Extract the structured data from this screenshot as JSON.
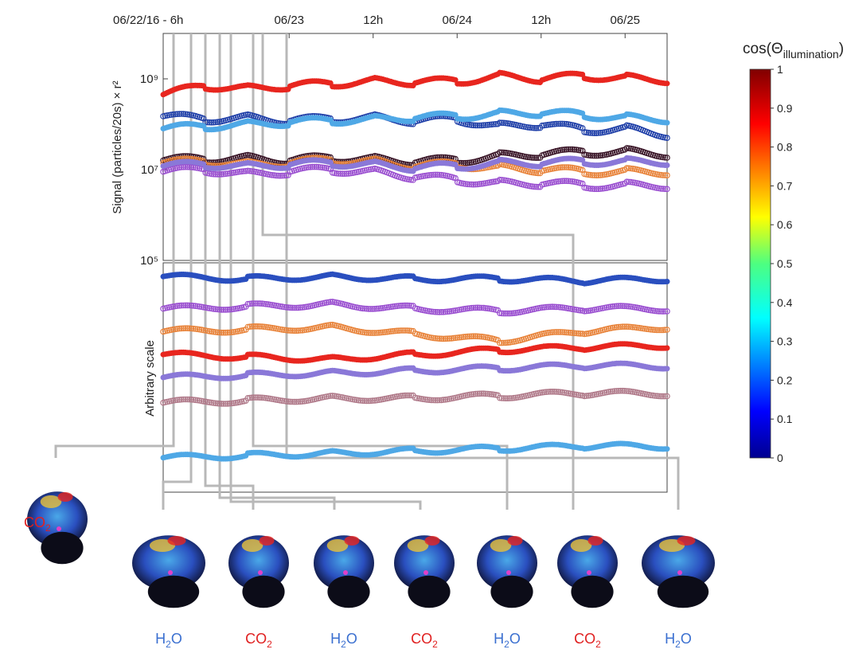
{
  "chart_data": [
    {
      "type": "scatter",
      "panel": "top",
      "ylabel": "Signal (particles/20s) × r²",
      "yscale": "log",
      "ylim": [
        100000,
        10000000000
      ],
      "yticks": [
        {
          "value": 100000,
          "label": "10⁵"
        },
        {
          "value": 10000000,
          "label": "10⁷"
        },
        {
          "value": 1000000000,
          "label": "10⁹"
        }
      ],
      "xlim": [
        0,
        3
      ],
      "xticks": [
        {
          "value": 0,
          "label": "06/22/16 - 6h"
        },
        {
          "value": 0.75,
          "label": "06/23"
        },
        {
          "value": 1.25,
          "label": "12h"
        },
        {
          "value": 1.75,
          "label": "06/24"
        },
        {
          "value": 2.25,
          "label": "12h"
        },
        {
          "value": 2.75,
          "label": "06/25"
        }
      ],
      "series": [
        {
          "color": "#e8261f",
          "marker": "filled",
          "x": [
            0,
            0.25,
            0.5,
            0.75,
            1.0,
            1.25,
            1.5,
            1.75,
            2.0,
            2.25,
            2.5,
            2.75,
            3.0
          ],
          "y": [
            450000000,
            700000000,
            620000000,
            700000000,
            780000000,
            900000000,
            850000000,
            880000000,
            1150000000,
            1000000000,
            1150000000,
            1050000000,
            950000000
          ]
        },
        {
          "color": "#1f3fa8",
          "marker": "open",
          "x": [
            0,
            0.25,
            0.5,
            0.75,
            1.0,
            1.25,
            1.5,
            1.75,
            2.0,
            2.25,
            2.5,
            2.75,
            3.0
          ],
          "y": [
            150000000,
            130000000,
            140000000,
            120000000,
            130000000,
            140000000,
            120000000,
            130000000,
            90000000,
            100000000,
            75000000,
            80000000,
            60000000
          ]
        },
        {
          "color": "#4fa8e6",
          "marker": "filled",
          "x": [
            0,
            0.25,
            0.5,
            0.75,
            1.0,
            1.25,
            1.5,
            1.75,
            2.0,
            2.25,
            2.5,
            2.75,
            3.0
          ],
          "y": [
            80000000,
            90000000,
            100000000,
            110000000,
            120000000,
            130000000,
            140000000,
            150000000,
            170000000,
            180000000,
            160000000,
            140000000,
            130000000
          ]
        },
        {
          "color": "#3a1628",
          "marker": "open",
          "x": [
            0,
            0.25,
            0.5,
            0.75,
            1.0,
            1.25,
            1.5,
            1.75,
            2.0,
            2.25,
            2.5,
            2.75,
            3.0
          ],
          "y": [
            16000000,
            17000000,
            18000000,
            16000000,
            18000000,
            17000000,
            15000000,
            16000000,
            20000000,
            22000000,
            24000000,
            25000000,
            22000000
          ]
        },
        {
          "color": "#e8833a",
          "marker": "open",
          "x": [
            0,
            0.25,
            0.5,
            0.75,
            1.0,
            1.25,
            1.5,
            1.75,
            2.0,
            2.25,
            2.5,
            2.75,
            3.0
          ],
          "y": [
            14000000,
            15000000,
            13000000,
            14000000,
            16000000,
            15000000,
            12000000,
            13000000,
            11000000,
            10000000,
            9000000,
            9000000,
            9000000
          ]
        },
        {
          "color": "#9a4fd0",
          "marker": "open",
          "x": [
            0,
            0.25,
            0.5,
            0.75,
            1.0,
            1.25,
            1.5,
            1.75,
            2.0,
            2.25,
            2.5,
            2.75,
            3.0
          ],
          "y": [
            9000000,
            10000000,
            8000000,
            9000000,
            10000000,
            9000000,
            7000000,
            6000000,
            5000000,
            5000000,
            4500000,
            4500000,
            4500000
          ]
        },
        {
          "color": "#8a78d8",
          "marker": "filled",
          "x": [
            0,
            0.25,
            0.5,
            0.75,
            1.0,
            1.25,
            1.5,
            1.75,
            2.0,
            2.25,
            2.5,
            2.75,
            3.0
          ],
          "y": [
            12000000,
            13000000,
            12000000,
            13000000,
            14000000,
            13000000,
            11000000,
            12000000,
            14000000,
            14000000,
            15000000,
            15000000,
            15000000
          ]
        }
      ]
    },
    {
      "type": "scatter",
      "panel": "bottom",
      "ylabel": "Arbitrary scale",
      "xlim": [
        0,
        3
      ],
      "series": [
        {
          "color": "#2a4fbf",
          "marker": "filled",
          "x": [
            0,
            0.5,
            1.0,
            1.5,
            2.0,
            2.5,
            3.0
          ],
          "y": [
            0.94,
            0.93,
            0.94,
            0.93,
            0.93,
            0.92,
            0.93
          ]
        },
        {
          "color": "#9a4fd0",
          "marker": "open",
          "x": [
            0,
            0.5,
            1.0,
            1.5,
            2.0,
            2.5,
            3.0
          ],
          "y": [
            0.8,
            0.81,
            0.82,
            0.8,
            0.79,
            0.8,
            0.8
          ]
        },
        {
          "color": "#e8833a",
          "marker": "open",
          "x": [
            0,
            0.5,
            1.0,
            1.5,
            2.0,
            2.5,
            3.0
          ],
          "y": [
            0.7,
            0.71,
            0.72,
            0.69,
            0.66,
            0.7,
            0.72
          ]
        },
        {
          "color": "#e8261f",
          "marker": "filled",
          "x": [
            0,
            0.5,
            1.0,
            1.5,
            2.0,
            2.5,
            3.0
          ],
          "y": [
            0.6,
            0.59,
            0.58,
            0.6,
            0.62,
            0.63,
            0.64
          ]
        },
        {
          "color": "#8a78d8",
          "marker": "filled",
          "x": [
            0,
            0.5,
            1.0,
            1.5,
            2.0,
            2.5,
            3.0
          ],
          "y": [
            0.5,
            0.51,
            0.52,
            0.53,
            0.54,
            0.55,
            0.55
          ]
        },
        {
          "color": "#b07a8a",
          "marker": "open",
          "x": [
            0,
            0.5,
            1.0,
            1.5,
            2.0,
            2.5,
            3.0
          ],
          "y": [
            0.39,
            0.4,
            0.41,
            0.41,
            0.42,
            0.43,
            0.43
          ]
        },
        {
          "color": "#4fa8e6",
          "marker": "filled",
          "x": [
            0,
            0.5,
            1.0,
            1.5,
            2.0,
            2.5,
            3.0
          ],
          "y": [
            0.15,
            0.16,
            0.17,
            0.18,
            0.19,
            0.2,
            0.2
          ]
        }
      ]
    }
  ],
  "colorbar": {
    "title": "cos(Θ",
    "title_sub": "illumination",
    "title_close": ")",
    "ticks": [
      {
        "value": 1,
        "label": "1"
      },
      {
        "value": 0.9,
        "label": "0.9"
      },
      {
        "value": 0.8,
        "label": "0.8"
      },
      {
        "value": 0.7,
        "label": "0.7"
      },
      {
        "value": 0.6,
        "label": "0.6"
      },
      {
        "value": 0.5,
        "label": "0.5"
      },
      {
        "value": 0.4,
        "label": "0.4"
      },
      {
        "value": 0.3,
        "label": "0.3"
      },
      {
        "value": 0.2,
        "label": "0.2"
      },
      {
        "value": 0.1,
        "label": "0.1"
      },
      {
        "value": 0,
        "label": "0"
      }
    ]
  },
  "thumbnails": [
    {
      "species": "CO",
      "sub": "2",
      "color": "#e02020"
    },
    {
      "species": "H",
      "sub": "2",
      "tail": "O",
      "color": "#3a6fd0"
    },
    {
      "species": "CO",
      "sub": "2",
      "color": "#e02020"
    },
    {
      "species": "H",
      "sub": "2",
      "tail": "O",
      "color": "#3a6fd0"
    },
    {
      "species": "CO",
      "sub": "2",
      "color": "#e02020"
    },
    {
      "species": "H",
      "sub": "2",
      "tail": "O",
      "color": "#3a6fd0"
    },
    {
      "species": "CO",
      "sub": "2",
      "color": "#e02020"
    },
    {
      "species": "H",
      "sub": "2",
      "tail": "O",
      "color": "#3a6fd0"
    }
  ]
}
